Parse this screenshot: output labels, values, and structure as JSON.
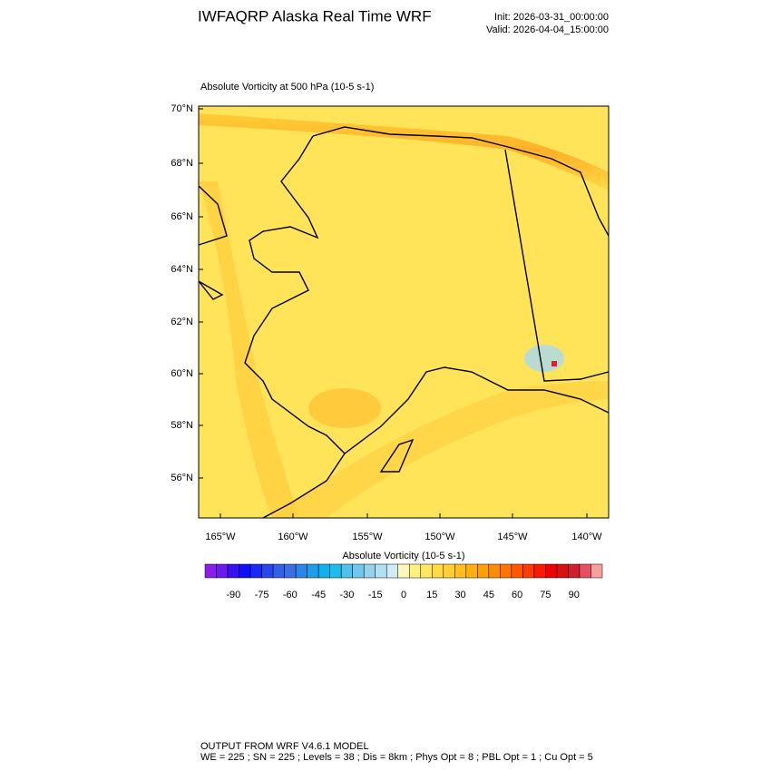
{
  "header": {
    "title": "IWFAQRP Alaska Real Time WRF",
    "init": "Init: 2026-03-31_00:00:00",
    "valid": "Valid: 2026-04-04_15:00:00"
  },
  "map": {
    "title": "Absolute Vorticity at 500 hPa   (10-5 s-1)",
    "lat_labels": [
      "70°N",
      "68°N",
      "66°N",
      "64°N",
      "62°N",
      "60°N",
      "58°N",
      "56°N"
    ],
    "lon_labels": [
      "165°W",
      "160°W",
      "155°W",
      "150°W",
      "145°W",
      "140°W"
    ]
  },
  "colorbar": {
    "title": "Absolute Vorticity  (10-5 s-1)",
    "lim": [
      -105,
      105
    ],
    "ticks": [
      -90,
      -75,
      -60,
      -45,
      -30,
      -15,
      0,
      15,
      30,
      45,
      60,
      75,
      90
    ],
    "colors": [
      "#8b1de8",
      "#6a1bf0",
      "#3a10f5",
      "#1010f8",
      "#1a2af5",
      "#2848ee",
      "#3360e8",
      "#3a70e4",
      "#2a86e8",
      "#1e9ee8",
      "#10b0ec",
      "#20bcee",
      "#50c0ec",
      "#72c8ec",
      "#94d2ee",
      "#b4def2",
      "#d0ecf6",
      "#fff8b8",
      "#fff080",
      "#ffe860",
      "#ffdc40",
      "#ffd030",
      "#ffc020",
      "#ffb010",
      "#ffa000",
      "#ff8c00",
      "#ff7400",
      "#ff5800",
      "#ff3c00",
      "#ff1800",
      "#f00000",
      "#d81010",
      "#d02030",
      "#e85060",
      "#f8a0a0"
    ]
  },
  "footer": {
    "line1": "OUTPUT FROM WRF V4.6.1 MODEL",
    "line2": "WE = 225 ; SN = 225 ; Levels = 38 ; Dis = 8km ; Phys Opt = 8 ; PBL Opt = 1 ; Cu Opt = 5"
  }
}
